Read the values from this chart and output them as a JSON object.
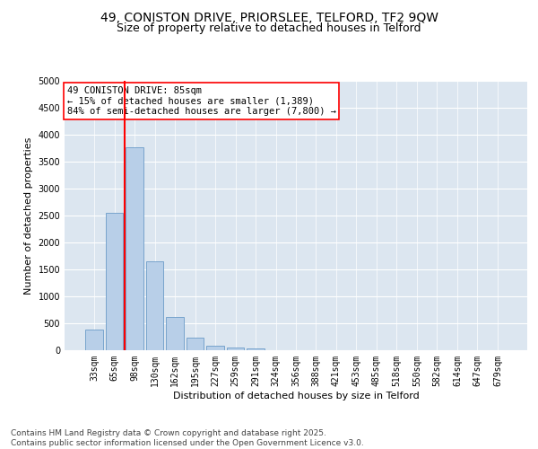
{
  "title_line1": "49, CONISTON DRIVE, PRIORSLEE, TELFORD, TF2 9QW",
  "title_line2": "Size of property relative to detached houses in Telford",
  "xlabel": "Distribution of detached houses by size in Telford",
  "ylabel": "Number of detached properties",
  "categories": [
    "33sqm",
    "65sqm",
    "98sqm",
    "130sqm",
    "162sqm",
    "195sqm",
    "227sqm",
    "259sqm",
    "291sqm",
    "324sqm",
    "356sqm",
    "388sqm",
    "421sqm",
    "453sqm",
    "485sqm",
    "518sqm",
    "550sqm",
    "582sqm",
    "614sqm",
    "647sqm",
    "679sqm"
  ],
  "values": [
    380,
    2550,
    3770,
    1650,
    620,
    230,
    90,
    50,
    40,
    0,
    0,
    0,
    0,
    0,
    0,
    0,
    0,
    0,
    0,
    0,
    0
  ],
  "bar_color": "#b8cfe8",
  "bar_edge_color": "#6b9bc8",
  "vline_color": "red",
  "vline_pos": 1.5,
  "ylim": [
    0,
    5000
  ],
  "yticks": [
    0,
    500,
    1000,
    1500,
    2000,
    2500,
    3000,
    3500,
    4000,
    4500,
    5000
  ],
  "annotation_text": "49 CONISTON DRIVE: 85sqm\n← 15% of detached houses are smaller (1,389)\n84% of semi-detached houses are larger (7,800) →",
  "annotation_box_color": "white",
  "annotation_box_edge_color": "red",
  "footer_line1": "Contains HM Land Registry data © Crown copyright and database right 2025.",
  "footer_line2": "Contains public sector information licensed under the Open Government Licence v3.0.",
  "background_color": "#dce6f0",
  "grid_color": "white",
  "title_fontsize": 10,
  "subtitle_fontsize": 9,
  "axis_label_fontsize": 8,
  "tick_fontsize": 7,
  "annotation_fontsize": 7.5,
  "footer_fontsize": 6.5
}
